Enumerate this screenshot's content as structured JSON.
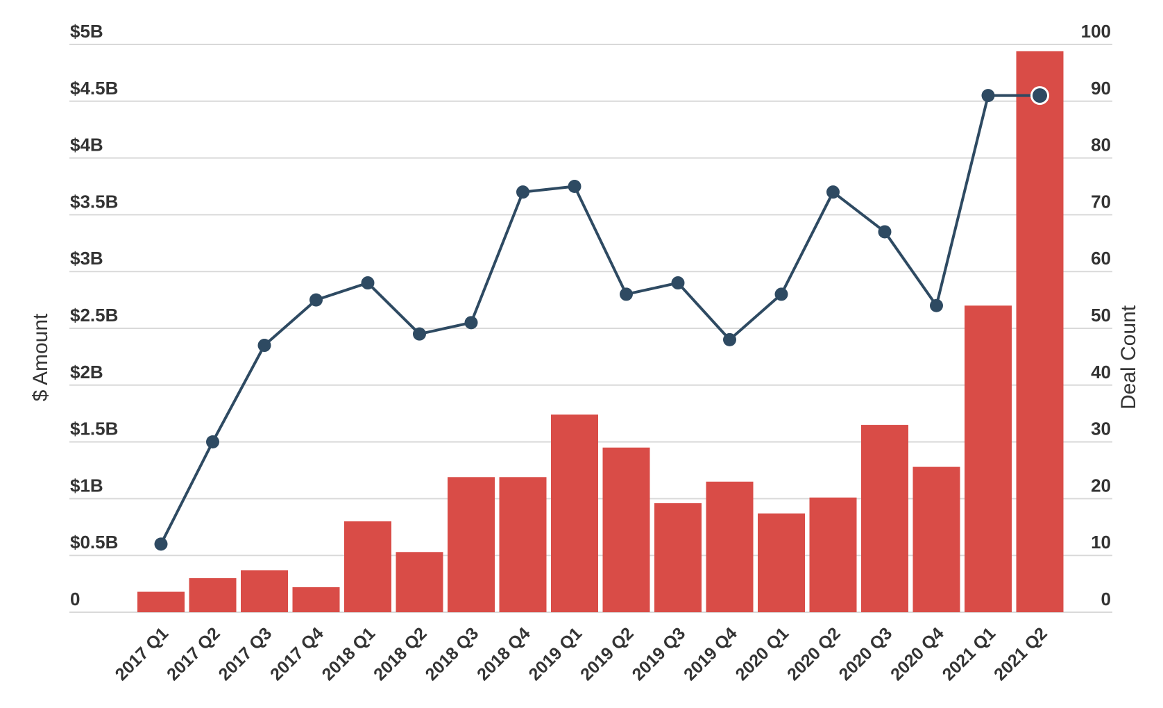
{
  "chart_data": {
    "type": "bar",
    "categories": [
      "2017 Q1",
      "2017 Q2",
      "2017 Q3",
      "2017 Q4",
      "2018 Q1",
      "2018 Q2",
      "2018 Q3",
      "2018 Q4",
      "2019 Q1",
      "2019 Q2",
      "2019 Q3",
      "2019 Q4",
      "2020 Q1",
      "2020 Q2",
      "2020 Q3",
      "2020 Q4",
      "2021 Q1",
      "2021 Q2"
    ],
    "series": [
      {
        "type": "bar",
        "axis": "left",
        "color": "#d94c47",
        "values": [
          0.18,
          0.3,
          0.37,
          0.22,
          0.8,
          0.53,
          1.19,
          1.19,
          1.74,
          1.45,
          0.96,
          1.15,
          0.87,
          1.01,
          1.65,
          1.28,
          2.7,
          4.94
        ]
      },
      {
        "type": "line",
        "axis": "right",
        "color": "#2e4a62",
        "values": [
          12,
          30,
          47,
          55,
          58,
          49,
          51,
          74,
          75,
          56,
          58,
          48,
          56,
          74,
          67,
          54,
          91,
          91
        ]
      }
    ],
    "ylabel": "$ Amount",
    "y2label": "Deal Count",
    "ylim": [
      0,
      5
    ],
    "y2lim": [
      0,
      100
    ],
    "yticks": [
      "0",
      "$0.5B",
      "$1B",
      "$1.5B",
      "$2B",
      "$2.5B",
      "$3B",
      "$3.5B",
      "$4B",
      "$4.5B",
      "$5B"
    ],
    "y2ticks": [
      "0",
      "10",
      "20",
      "30",
      "40",
      "50",
      "60",
      "70",
      "80",
      "90",
      "100"
    ],
    "grid": true
  }
}
